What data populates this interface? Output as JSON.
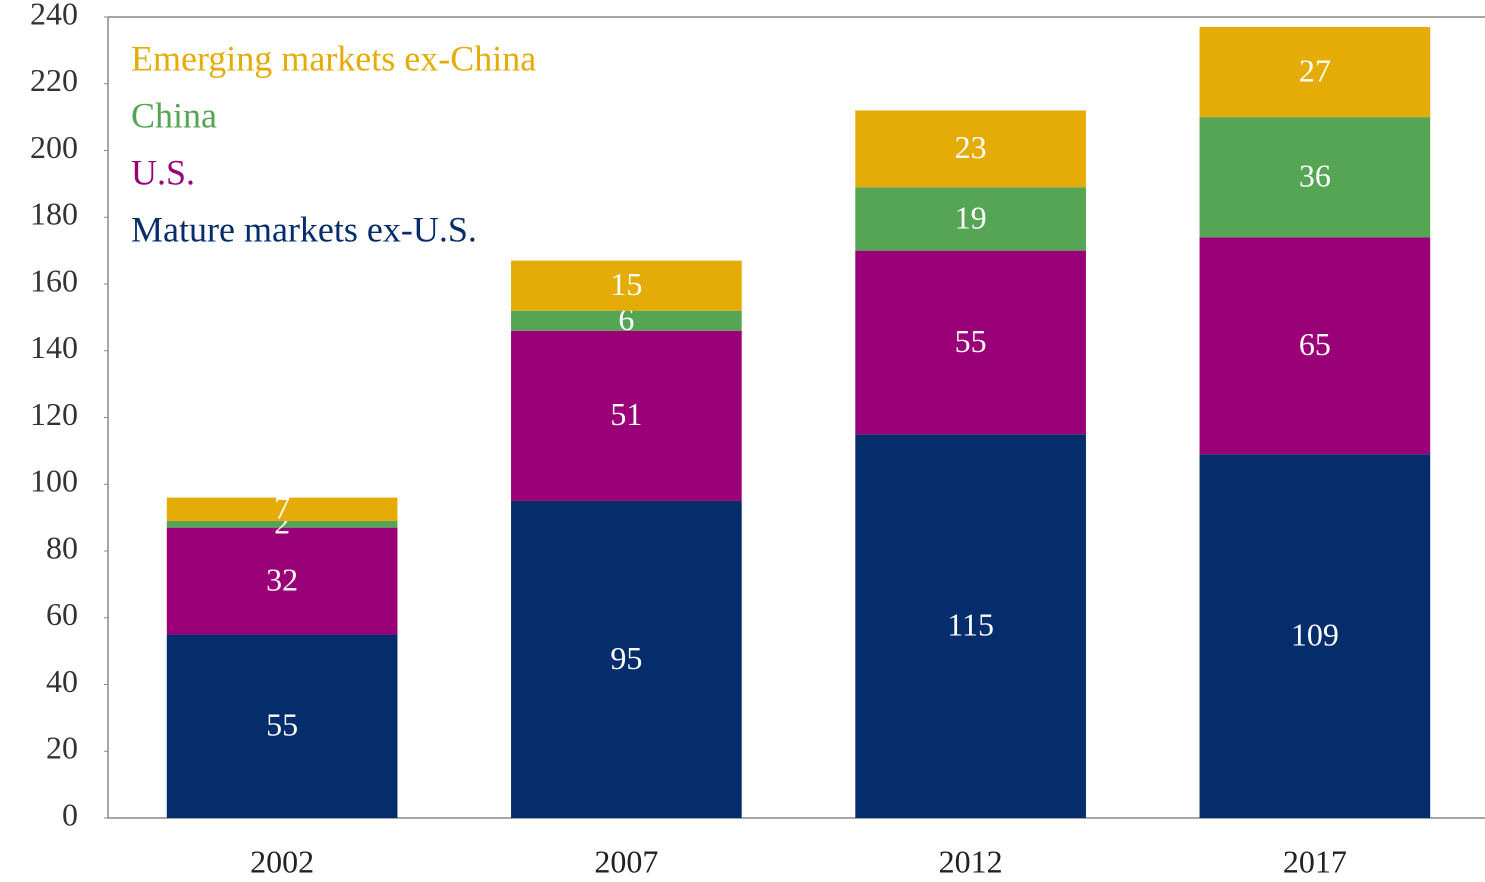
{
  "chart_data": {
    "type": "stacked_bar",
    "categories": [
      "2002",
      "2007",
      "2012",
      "2017"
    ],
    "series": [
      {
        "name": "Mature markets ex-U.S.",
        "color": "#052c6b",
        "values": [
          55,
          95,
          115,
          109
        ]
      },
      {
        "name": "U.S.",
        "color": "#990077",
        "values": [
          32,
          51,
          55,
          65
        ]
      },
      {
        "name": "China",
        "color": "#55a555",
        "values": [
          2,
          6,
          19,
          36
        ]
      },
      {
        "name": "Emerging markets ex-China",
        "color": "#e5ab07",
        "values": [
          7,
          15,
          23,
          27
        ]
      }
    ],
    "ylim": [
      0,
      240
    ],
    "yticks": [
      0,
      20,
      40,
      60,
      80,
      100,
      120,
      140,
      160,
      180,
      200,
      220,
      240
    ],
    "grid": false,
    "legend": "upper left"
  }
}
